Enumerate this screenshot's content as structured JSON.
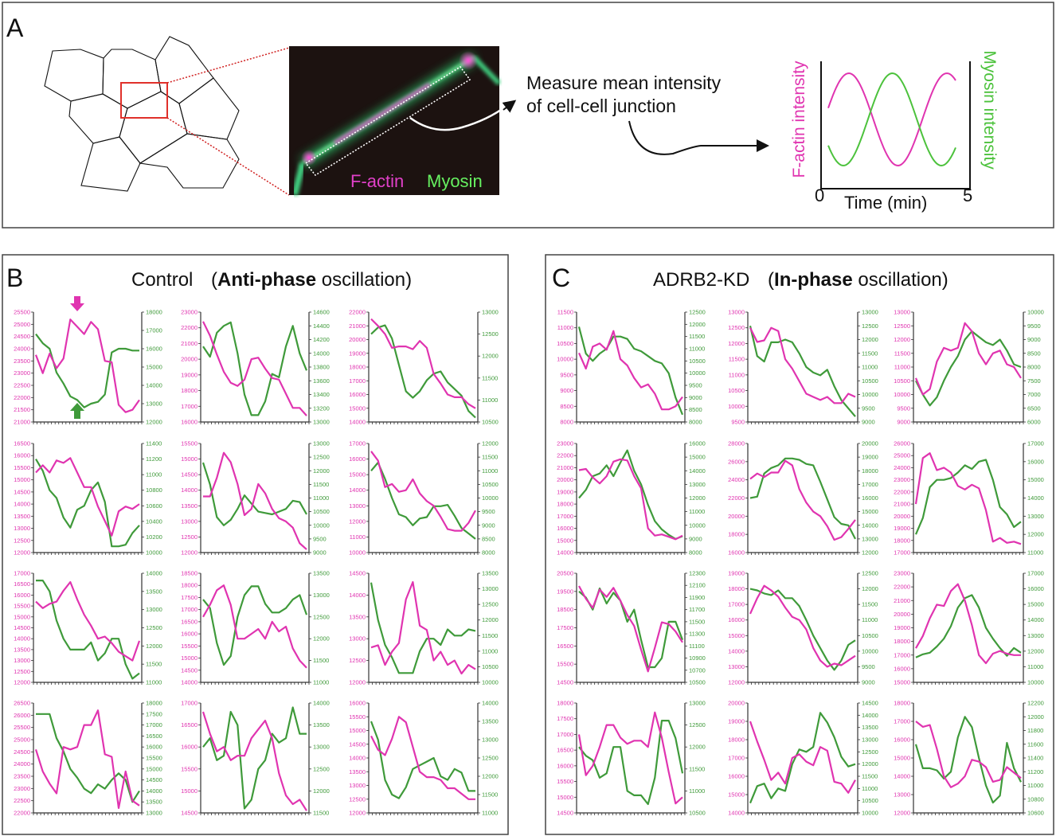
{
  "colors": {
    "factin": "#e034b0",
    "myosin": "#3f9a3a",
    "axis": "#333333"
  },
  "panel_a": {
    "label": "A",
    "image_labels": {
      "factin": "F-actin",
      "myosin": "Myosin"
    },
    "measure_text_line1": "Measure mean intensity",
    "measure_text_line2": "of cell-cell junction",
    "schematic": {
      "ylabel_left": "F-actin intensity",
      "ylabel_right": "Myosin intensity",
      "xlabel": "Time (min)",
      "x_start": "0",
      "x_end": "5"
    }
  },
  "panel_b": {
    "label": "B",
    "title": "Control",
    "open": "(",
    "bold": "Anti-phase",
    "rest": " oscillation)"
  },
  "panel_c": {
    "label": "C",
    "title": "ADRB2-KD",
    "open": "(",
    "bold": "In-phase",
    "rest": " oscillation)"
  },
  "chart_data": [
    {
      "panel": "B",
      "type": "line",
      "ylim": [
        21000,
        25500
      ],
      "ystep": 500,
      "y2lim": [
        12000,
        18000
      ],
      "y2step": 1000,
      "factin": [
        23750,
        23000,
        23800,
        23200,
        23600,
        25200,
        24900,
        24600,
        25100,
        24800,
        23500,
        23450,
        21700,
        21400,
        21500,
        21900
      ],
      "myosin": [
        16800,
        16300,
        16000,
        14700,
        14100,
        13400,
        13200,
        12800,
        13000,
        13100,
        13500,
        15800,
        16000,
        16000,
        15900,
        15900
      ]
    },
    {
      "panel": "B",
      "type": "line",
      "ylim": [
        16000,
        23000
      ],
      "ystep": 1000,
      "y2lim": [
        13000,
        14600
      ],
      "y2step": 200,
      "factin": [
        22400,
        21500,
        20300,
        19200,
        18500,
        18300,
        18700,
        20000,
        20100,
        19400,
        18800,
        18700,
        17800,
        16900,
        16900,
        16400
      ],
      "myosin": [
        14100,
        13950,
        14300,
        14400,
        14450,
        14000,
        13400,
        13100,
        13100,
        13300,
        13700,
        13650,
        14100,
        14400,
        14000,
        13750
      ]
    },
    {
      "panel": "B",
      "type": "line",
      "ylim": [
        14000,
        22000
      ],
      "ystep": 1000,
      "y2lim": [
        10500,
        13000
      ],
      "y2step": 500,
      "factin": [
        21500,
        21000,
        20400,
        19400,
        19500,
        19500,
        19300,
        19900,
        19400,
        17500,
        16800,
        16000,
        15800,
        15800,
        15300,
        15000
      ],
      "myosin": [
        12500,
        12650,
        12700,
        12400,
        11800,
        11200,
        11050,
        11200,
        11450,
        11600,
        11650,
        11400,
        11250,
        11100,
        10750,
        10600
      ]
    },
    {
      "panel": "B",
      "type": "line",
      "ylim": [
        12000,
        16500
      ],
      "ystep": 500,
      "y2lim": [
        10000,
        11400
      ],
      "y2step": 200,
      "factin": [
        15300,
        15600,
        15300,
        15800,
        15700,
        15900,
        15300,
        14700,
        14700,
        13900,
        13300,
        12700,
        13700,
        13900,
        13800,
        14000
      ],
      "myosin": [
        11200,
        11050,
        10800,
        10700,
        10450,
        10320,
        10550,
        10600,
        10800,
        10900,
        10650,
        10080,
        10080,
        10100,
        10250,
        10350
      ]
    },
    {
      "panel": "B",
      "type": "line",
      "ylim": [
        12000,
        15500
      ],
      "ystep": 500,
      "y2lim": [
        9000,
        13000
      ],
      "y2step": 500,
      "factin": [
        13800,
        13800,
        14400,
        15200,
        14900,
        14200,
        13200,
        13400,
        14200,
        13900,
        13400,
        13100,
        13000,
        12800,
        12300,
        12100
      ],
      "myosin": [
        12300,
        11500,
        10300,
        10000,
        10200,
        10600,
        11100,
        10800,
        10500,
        10450,
        10400,
        10500,
        10600,
        10900,
        10850,
        10400
      ]
    },
    {
      "panel": "B",
      "type": "line",
      "ylim": [
        10000,
        17000
      ],
      "ystep": 1000,
      "y2lim": [
        8000,
        12000
      ],
      "y2step": 500,
      "factin": [
        16500,
        15900,
        14200,
        14400,
        13900,
        14000,
        14700,
        13800,
        13300,
        13000,
        12300,
        11500,
        11400,
        11400,
        11900,
        12700
      ],
      "myosin": [
        11000,
        11300,
        10700,
        10000,
        9400,
        9300,
        9000,
        9250,
        9300,
        9700,
        9700,
        9750,
        9350,
        8900,
        8700,
        8500
      ]
    },
    {
      "panel": "B",
      "type": "line",
      "ylim": [
        12000,
        17000
      ],
      "ystep": 500,
      "y2lim": [
        11000,
        14000
      ],
      "y2step": 500,
      "factin": [
        15700,
        15400,
        15600,
        15700,
        16200,
        16600,
        15800,
        15100,
        14600,
        14000,
        14100,
        13800,
        13400,
        13200,
        13000,
        13900
      ],
      "myosin": [
        13800,
        13800,
        13500,
        12700,
        12200,
        11900,
        11900,
        11900,
        12100,
        11600,
        11800,
        12200,
        12200,
        11500,
        11100,
        11250
      ]
    },
    {
      "panel": "B",
      "type": "line",
      "ylim": [
        14000,
        18500
      ],
      "ystep": 500,
      "y2lim": [
        11000,
        13500
      ],
      "y2step": 500,
      "factin": [
        16700,
        17200,
        17800,
        18000,
        17200,
        15800,
        15800,
        16000,
        16200,
        15800,
        16500,
        16100,
        16300,
        15400,
        14900,
        14600
      ],
      "myosin": [
        12900,
        12700,
        11900,
        11400,
        11600,
        12500,
        13000,
        13200,
        13200,
        12800,
        12600,
        12600,
        12700,
        12900,
        13000,
        12550
      ]
    },
    {
      "panel": "B",
      "type": "line",
      "ylim": [
        12000,
        14500
      ],
      "ystep": 500,
      "y2lim": [
        10000,
        13500
      ],
      "y2step": 500,
      "factin": [
        12800,
        12850,
        12400,
        12700,
        12900,
        13900,
        14300,
        13300,
        13200,
        12500,
        12700,
        12400,
        12500,
        12200,
        12400,
        12300
      ],
      "myosin": [
        13200,
        12000,
        11200,
        10800,
        10300,
        10300,
        10300,
        11000,
        11400,
        11400,
        11200,
        11700,
        11500,
        11500,
        11700,
        11650
      ]
    },
    {
      "panel": "B",
      "type": "line",
      "ylim": [
        22000,
        26500
      ],
      "ystep": 500,
      "y2lim": [
        13000,
        18000
      ],
      "y2step": 500,
      "factin": [
        24600,
        23700,
        23200,
        22800,
        24700,
        24600,
        24700,
        25600,
        25600,
        26200,
        24400,
        24300,
        22200,
        23700,
        22500,
        22300
      ],
      "myosin": [
        17500,
        17500,
        17500,
        16400,
        15800,
        15000,
        14600,
        14100,
        13900,
        14300,
        14100,
        14500,
        14800,
        14500,
        13500,
        14000
      ]
    },
    {
      "panel": "B",
      "type": "line",
      "ylim": [
        14500,
        17000
      ],
      "ystep": 500,
      "y2lim": [
        11500,
        14000
      ],
      "y2step": 500,
      "factin": [
        16800,
        16300,
        15900,
        16000,
        15700,
        15800,
        15800,
        16200,
        16400,
        16600,
        16200,
        15400,
        14900,
        14700,
        14800,
        14550
      ],
      "myosin": [
        13000,
        13200,
        12700,
        12800,
        13800,
        13500,
        11600,
        11800,
        12500,
        12700,
        13300,
        13100,
        13200,
        13900,
        13300,
        13300
      ]
    },
    {
      "panel": "B",
      "type": "line",
      "ylim": [
        12000,
        16000
      ],
      "ystep": 500,
      "y2lim": [
        11000,
        14000
      ],
      "y2step": 500,
      "factin": [
        14800,
        14300,
        14100,
        14700,
        15500,
        15300,
        14400,
        13500,
        13300,
        13300,
        13200,
        12900,
        12900,
        12700,
        12500,
        12500
      ],
      "myosin": [
        13500,
        13000,
        11900,
        11500,
        11400,
        11700,
        12200,
        12300,
        12400,
        12500,
        12000,
        11900,
        12200,
        12100,
        11600,
        11600
      ]
    },
    {
      "panel": "C",
      "type": "line",
      "ylim": [
        8000,
        11500
      ],
      "ystep": 500,
      "y2lim": [
        8000,
        12500
      ],
      "y2step": 500,
      "factin": [
        10200,
        9700,
        10400,
        10500,
        10300,
        10900,
        10000,
        9800,
        9400,
        9100,
        9200,
        8900,
        8400,
        8400,
        8500,
        8800
      ],
      "myosin": [
        11900,
        10800,
        10500,
        10800,
        11000,
        11500,
        11500,
        11400,
        11000,
        10900,
        10700,
        10500,
        10400,
        10000,
        9000,
        8300
      ]
    },
    {
      "panel": "C",
      "type": "line",
      "ylim": [
        9500,
        13000
      ],
      "ystep": 500,
      "y2lim": [
        9000,
        13000
      ],
      "y2step": 500,
      "factin": [
        12500,
        12050,
        12100,
        12500,
        12400,
        11500,
        11200,
        10800,
        10400,
        10300,
        10200,
        10300,
        10100,
        10100,
        10400,
        10300
      ],
      "myosin": [
        12500,
        11400,
        11200,
        11900,
        11900,
        12000,
        11900,
        11500,
        11000,
        10800,
        10700,
        10900,
        10300,
        9800,
        9500,
        9200
      ]
    },
    {
      "panel": "C",
      "type": "line",
      "ylim": [
        9000,
        13000
      ],
      "ystep": 500,
      "y2lim": [
        6000,
        10000
      ],
      "y2step": 500,
      "factin": [
        10600,
        10000,
        10200,
        11200,
        11700,
        11600,
        11700,
        12600,
        12300,
        11500,
        11100,
        11500,
        11600,
        11100,
        11000,
        10600
      ],
      "myosin": [
        7500,
        7000,
        6600,
        6900,
        7500,
        8000,
        8400,
        9000,
        9300,
        9100,
        8900,
        8800,
        9000,
        8600,
        8100,
        8000
      ]
    },
    {
      "panel": "C",
      "type": "line",
      "ylim": [
        14000,
        23000
      ],
      "ystep": 1000,
      "y2lim": [
        8000,
        16000
      ],
      "y2step": 1000,
      "factin": [
        20800,
        20900,
        20200,
        19700,
        20300,
        21500,
        21700,
        21600,
        20300,
        19300,
        16000,
        15400,
        15500,
        15300,
        15100,
        15400
      ],
      "myosin": [
        12000,
        12600,
        13600,
        13800,
        14400,
        13600,
        14600,
        15500,
        14000,
        13000,
        11500,
        10300,
        9700,
        9300,
        9000,
        9200
      ]
    },
    {
      "panel": "C",
      "type": "line",
      "ylim": [
        16000,
        28000
      ],
      "ystep": 2000,
      "y2lim": [
        12000,
        20000
      ],
      "y2step": 1000,
      "factin": [
        24100,
        24700,
        24300,
        24800,
        24800,
        26100,
        25600,
        23000,
        21500,
        20500,
        20000,
        18900,
        17400,
        17700,
        18600,
        19600
      ],
      "myosin": [
        16000,
        16100,
        17800,
        18200,
        18400,
        18900,
        18900,
        18800,
        18500,
        18400,
        17200,
        15900,
        14600,
        14100,
        14000,
        13000
      ]
    },
    {
      "panel": "C",
      "type": "line",
      "ylim": [
        17000,
        26000
      ],
      "ystep": 1000,
      "y2lim": [
        11000,
        17000
      ],
      "y2step": 1000,
      "factin": [
        21000,
        24800,
        25200,
        23800,
        24000,
        23600,
        22500,
        22200,
        22600,
        22300,
        20500,
        17900,
        18200,
        17800,
        17900,
        17700
      ],
      "myosin": [
        12000,
        12900,
        14600,
        15000,
        15000,
        15100,
        15400,
        15800,
        15600,
        16000,
        16100,
        15000,
        13500,
        13100,
        12400,
        12700
      ]
    },
    {
      "panel": "C",
      "type": "line",
      "ylim": [
        14500,
        20500
      ],
      "ystep": 1000,
      "y2lim": [
        10500,
        12300
      ],
      "y2step": 200,
      "factin": [
        19800,
        19100,
        18600,
        19600,
        19200,
        19700,
        19000,
        18200,
        17600,
        16300,
        15100,
        16400,
        17800,
        17700,
        17300,
        16700
      ],
      "myosin": [
        12000,
        11900,
        11700,
        12050,
        11800,
        11980,
        11850,
        11500,
        11700,
        11200,
        10750,
        10750,
        10900,
        11500,
        11500,
        11200
      ]
    },
    {
      "panel": "C",
      "type": "line",
      "ylim": [
        12000,
        19000
      ],
      "ystep": 1000,
      "y2lim": [
        9000,
        12500
      ],
      "y2step": 500,
      "factin": [
        16400,
        17400,
        18200,
        17900,
        17500,
        16800,
        16200,
        16000,
        15400,
        14200,
        13400,
        13000,
        13200,
        13100,
        13400,
        13700
      ],
      "myosin": [
        12000,
        11950,
        11850,
        11800,
        11950,
        11700,
        11700,
        11450,
        11000,
        10500,
        10100,
        9700,
        9400,
        9700,
        10200,
        10350
      ]
    },
    {
      "panel": "C",
      "type": "line",
      "ylim": [
        15000,
        23000
      ],
      "ystep": 1000,
      "y2lim": [
        10000,
        17000
      ],
      "y2step": 1000,
      "factin": [
        17500,
        18400,
        19700,
        20700,
        20600,
        21700,
        22200,
        21000,
        19200,
        17000,
        16400,
        17100,
        17300,
        17100,
        17000,
        17000
      ],
      "myosin": [
        11600,
        11800,
        11900,
        12300,
        12800,
        13600,
        14800,
        15400,
        15600,
        14800,
        13500,
        12800,
        12200,
        11700,
        12200,
        11900
      ]
    },
    {
      "panel": "C",
      "type": "line",
      "ylim": [
        14500,
        18000
      ],
      "ystep": 500,
      "y2lim": [
        10500,
        13000
      ],
      "y2step": 500,
      "factin": [
        17000,
        15700,
        16000,
        16600,
        17300,
        17300,
        16900,
        16700,
        16800,
        16800,
        16600,
        17700,
        16900,
        15800,
        14800,
        15000
      ],
      "myosin": [
        12000,
        11800,
        11700,
        11300,
        11400,
        12000,
        12000,
        11000,
        10900,
        10900,
        10700,
        11300,
        12600,
        12600,
        12200,
        11400
      ]
    },
    {
      "panel": "C",
      "type": "line",
      "ylim": [
        14000,
        20000
      ],
      "ystep": 1000,
      "y2lim": [
        10000,
        14500
      ],
      "y2step": 500,
      "factin": [
        19000,
        17900,
        16900,
        15800,
        16200,
        15600,
        17000,
        17200,
        16800,
        16600,
        17600,
        17400,
        15700,
        15600,
        15100,
        15800
      ],
      "myosin": [
        10400,
        11100,
        11200,
        10600,
        11000,
        10900,
        12000,
        12600,
        12500,
        12700,
        14100,
        13700,
        13100,
        12300,
        11900,
        12000
      ]
    },
    {
      "panel": "C",
      "type": "line",
      "ylim": [
        12000,
        18000
      ],
      "ystep": 1000,
      "y2lim": [
        10600,
        12200
      ],
      "y2step": 200,
      "factin": [
        17000,
        16700,
        16800,
        15500,
        14000,
        13400,
        13600,
        14000,
        14900,
        14800,
        14500,
        13700,
        13800,
        14500,
        14200,
        13900
      ],
      "myosin": [
        11600,
        11250,
        11250,
        11220,
        11100,
        11200,
        11700,
        12000,
        11850,
        11400,
        11000,
        10750,
        10850,
        11620,
        11250,
        11050
      ]
    }
  ]
}
